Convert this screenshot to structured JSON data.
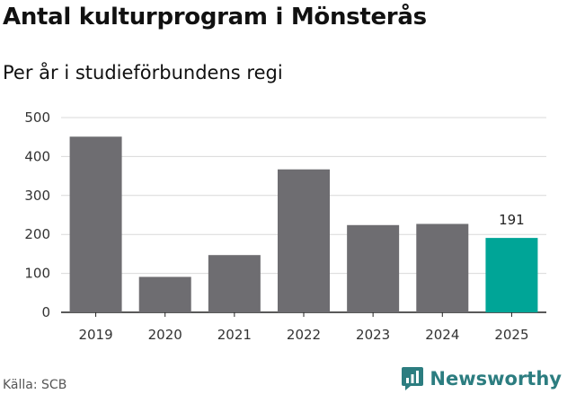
{
  "header": {
    "title": "Antal kulturprogram i Mönsterås",
    "subtitle": "Per år i studieförbundens regi"
  },
  "footer": {
    "source": "Källa: SCB",
    "brand": "Newsworthy",
    "brand_icon": "newsworthy-logo-icon"
  },
  "colors": {
    "bar": "#6e6d71",
    "highlight": "#00a597",
    "grid": "#d9d9d9",
    "brand": "#2c7d80"
  },
  "chart_data": {
    "type": "bar",
    "categories": [
      "2019",
      "2020",
      "2021",
      "2022",
      "2023",
      "2024",
      "2025"
    ],
    "values": [
      451,
      91,
      147,
      367,
      224,
      227,
      191
    ],
    "highlight_index": 6,
    "data_labels": [
      {
        "index": 6,
        "text": "191"
      }
    ],
    "title": "Antal kulturprogram i Mönsterås",
    "subtitle": "Per år i studieförbundens regi",
    "xlabel": "",
    "ylabel": "",
    "ylim": [
      0,
      500
    ],
    "yticks": [
      0,
      100,
      200,
      300,
      400,
      500
    ],
    "grid": true
  }
}
